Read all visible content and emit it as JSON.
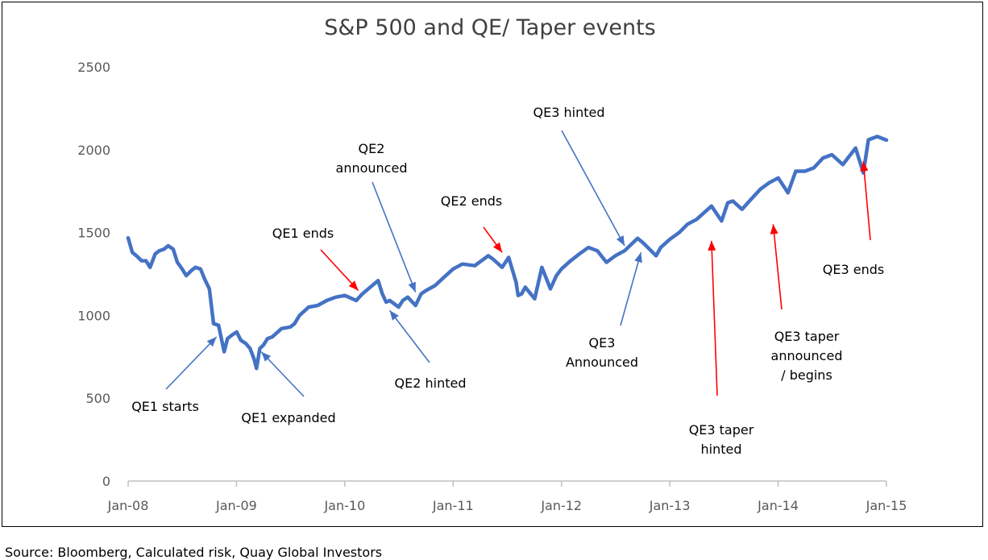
{
  "chart_data": {
    "type": "line",
    "title": "S&P 500 and QE/ Taper events",
    "xlabel": "",
    "ylabel": "",
    "x_ticks": [
      "Jan-08",
      "Jan-09",
      "Jan-10",
      "Jan-11",
      "Jan-12",
      "Jan-13",
      "Jan-14",
      "Jan-15"
    ],
    "y_ticks": [
      0,
      500,
      1000,
      1500,
      2000,
      2500
    ],
    "xlim": [
      "2008-01-01",
      "2015-01-01"
    ],
    "ylim": [
      0,
      2500
    ],
    "grid": false,
    "legend": "none",
    "series_color": "#4472C4",
    "series": [
      {
        "x": [
          "2008-01-01",
          "2008-01-15",
          "2008-02-01",
          "2008-02-15",
          "2008-03-01",
          "2008-03-15",
          "2008-04-01",
          "2008-04-15",
          "2008-05-01",
          "2008-05-15",
          "2008-06-01",
          "2008-06-15",
          "2008-07-01",
          "2008-07-15",
          "2008-08-01",
          "2008-08-15",
          "2008-09-01",
          "2008-09-15",
          "2008-10-01",
          "2008-10-15",
          "2008-11-01",
          "2008-11-20",
          "2008-12-01",
          "2008-12-15",
          "2009-01-01",
          "2009-01-15",
          "2009-02-01",
          "2009-02-15",
          "2009-03-01",
          "2009-03-09",
          "2009-03-20",
          "2009-04-01",
          "2009-04-15",
          "2009-05-01",
          "2009-06-01",
          "2009-07-01",
          "2009-07-15",
          "2009-08-01",
          "2009-09-01",
          "2009-10-01",
          "2009-11-01",
          "2009-12-01",
          "2010-01-01",
          "2010-02-08",
          "2010-03-01",
          "2010-04-23",
          "2010-05-07",
          "2010-05-20",
          "2010-06-01",
          "2010-07-01",
          "2010-07-15",
          "2010-08-01",
          "2010-08-27",
          "2010-09-15",
          "2010-10-01",
          "2010-11-01",
          "2010-12-01",
          "2011-01-01",
          "2011-02-01",
          "2011-03-15",
          "2011-04-29",
          "2011-05-15",
          "2011-06-15",
          "2011-07-07",
          "2011-08-01",
          "2011-08-08",
          "2011-08-20",
          "2011-09-01",
          "2011-10-03",
          "2011-10-27",
          "2011-11-25",
          "2011-12-15",
          "2012-01-01",
          "2012-02-01",
          "2012-03-01",
          "2012-04-01",
          "2012-05-01",
          "2012-06-01",
          "2012-07-01",
          "2012-08-01",
          "2012-09-14",
          "2012-10-01",
          "2012-11-15",
          "2012-12-01",
          "2013-01-01",
          "2013-02-01",
          "2013-03-01",
          "2013-04-01",
          "2013-05-21",
          "2013-06-24",
          "2013-07-15",
          "2013-08-01",
          "2013-09-01",
          "2013-10-01",
          "2013-11-01",
          "2013-12-01",
          "2014-01-01",
          "2014-02-03",
          "2014-03-01",
          "2014-04-01",
          "2014-05-01",
          "2014-06-01",
          "2014-07-01",
          "2014-08-07",
          "2014-09-19",
          "2014-10-15",
          "2014-11-01",
          "2014-12-01",
          "2015-01-01"
        ],
        "y": [
          1468,
          1380,
          1355,
          1330,
          1330,
          1290,
          1370,
          1390,
          1400,
          1420,
          1400,
          1320,
          1280,
          1240,
          1270,
          1290,
          1280,
          1220,
          1160,
          950,
          940,
          780,
          860,
          880,
          900,
          850,
          830,
          800,
          735,
          680,
          800,
          820,
          860,
          870,
          920,
          930,
          950,
          1000,
          1050,
          1060,
          1090,
          1110,
          1120,
          1090,
          1130,
          1210,
          1130,
          1080,
          1090,
          1050,
          1090,
          1110,
          1060,
          1130,
          1150,
          1180,
          1230,
          1280,
          1310,
          1300,
          1360,
          1340,
          1290,
          1350,
          1200,
          1120,
          1130,
          1170,
          1100,
          1290,
          1160,
          1240,
          1280,
          1330,
          1370,
          1410,
          1390,
          1320,
          1360,
          1390,
          1465,
          1440,
          1360,
          1410,
          1460,
          1500,
          1550,
          1580,
          1660,
          1570,
          1680,
          1690,
          1640,
          1700,
          1760,
          1800,
          1830,
          1740,
          1870,
          1870,
          1890,
          1950,
          1970,
          1910,
          2010,
          1860,
          2060,
          2080,
          2058
        ]
      }
    ],
    "annotations": [
      {
        "text": [
          "QE1 starts"
        ],
        "arrow_to": [
          "2008-10-25",
          870
        ],
        "color": "#4472C4"
      },
      {
        "text": [
          "QE1 expanded"
        ],
        "arrow_to": [
          "2009-03-25",
          780
        ],
        "color": "#4472C4"
      },
      {
        "text": [
          "QE1 ends"
        ],
        "arrow_to": [
          "2010-02-15",
          1150
        ],
        "color": "#FF0000"
      },
      {
        "text": [
          "QE2",
          "announced"
        ],
        "arrow_to": [
          "2010-08-27",
          1140
        ],
        "color": "#4472C4"
      },
      {
        "text": [
          "QE2 hinted"
        ],
        "arrow_to": [
          "2010-06-01",
          1030
        ],
        "color": "#4472C4"
      },
      {
        "text": [
          "QE2 ends"
        ],
        "arrow_to": [
          "2011-06-15",
          1380
        ],
        "color": "#FF0000"
      },
      {
        "text": [
          "QE3 hinted"
        ],
        "arrow_to": [
          "2012-08-01",
          1420
        ],
        "color": "#4472C4"
      },
      {
        "text": [
          "QE3",
          "Announced"
        ],
        "arrow_to": [
          "2012-09-25",
          1380
        ],
        "color": "#4472C4"
      },
      {
        "text": [
          "QE3 taper",
          "hinted"
        ],
        "arrow_to": [
          "2013-05-21",
          1450
        ],
        "color": "#FF0000"
      },
      {
        "text": [
          "QE3 taper",
          "announced",
          "/ begins"
        ],
        "arrow_to": [
          "2013-12-15",
          1550
        ],
        "color": "#FF0000"
      },
      {
        "text": [
          "QE3 ends"
        ],
        "arrow_to": [
          "2014-10-15",
          1930
        ],
        "color": "#FF0000"
      }
    ]
  },
  "source": "Source: Bloomberg, Calculated risk, Quay Global Investors"
}
